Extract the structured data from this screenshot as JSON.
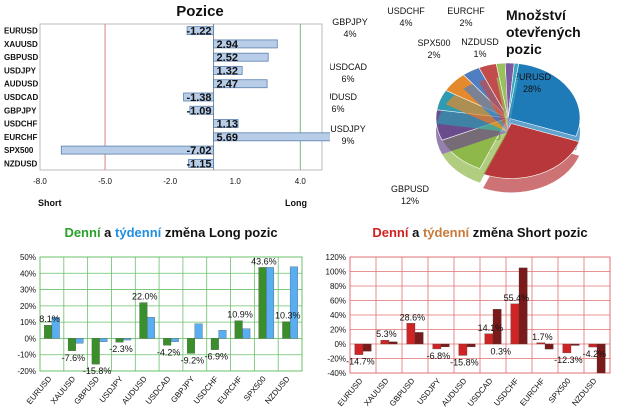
{
  "chart_data": [
    {
      "type": "bar",
      "orientation": "horizontal",
      "title": "Pozice",
      "categories": [
        "EURUSD",
        "XAUUSD",
        "GBPUSD",
        "USDJPY",
        "AUDUSD",
        "USDCAD",
        "GBPJPY",
        "USDCHF",
        "EURCHF",
        "SPX500",
        "NZDUSD"
      ],
      "values": [
        -1.22,
        2.94,
        2.52,
        1.32,
        2.47,
        -1.38,
        -1.09,
        1.13,
        5.69,
        -7.02,
        -1.15
      ],
      "value_labels": [
        "-1.22",
        "2.94",
        "2.52",
        "1.32",
        "2.47",
        "-1.38",
        "-1.09",
        "1.13",
        "5.69",
        "-7.02",
        "-1.15"
      ],
      "xticks": [
        "-8.0",
        "-5.0",
        "-2.0",
        "1.0",
        "4.0"
      ],
      "xlim": [
        -8,
        5
      ],
      "reference_lines": [
        -5,
        4
      ],
      "left_label": "Short",
      "right_label": "Long",
      "colors": {
        "bar": "#b8cde8",
        "bar_edge": "#5a7fb0",
        "neg_line": "#d98080",
        "pos_line": "#7ab87a"
      }
    },
    {
      "type": "pie",
      "title_lines": [
        "Množství",
        "otevřených",
        "pozic"
      ],
      "slices": [
        {
          "label": "EURUSD",
          "value": 28,
          "text": "28%",
          "color": "#1f7ab8"
        },
        {
          "label": "XAUUSD",
          "value": 26,
          "text": "26%",
          "color": "#b8373a"
        },
        {
          "label": "GBPUSD",
          "value": 12,
          "text": "12%",
          "color": "#8fb84a"
        },
        {
          "label": "USDJPY",
          "value": 9,
          "text": "9%",
          "color": "#6a4c8c"
        },
        {
          "label": "AUDUSD",
          "value": 6,
          "text": "6%",
          "color": "#2f9ab0"
        },
        {
          "label": "USDCAD",
          "value": 6,
          "text": "6%",
          "color": "#e48a2c"
        },
        {
          "label": "GBPJPY",
          "value": 4,
          "text": "4%",
          "color": "#4f7fc0"
        },
        {
          "label": "USDCHF",
          "value": 4,
          "text": "4%",
          "color": "#c24b4b"
        },
        {
          "label": "SPX500",
          "value": 2,
          "text": "2%",
          "color": "#9ac25a"
        },
        {
          "label": "EURCHF",
          "value": 2,
          "text": "2%",
          "color": "#7a5aa0"
        },
        {
          "label": "NZDUSD",
          "value": 1,
          "text": "1%",
          "color": "#3aa8c0"
        }
      ]
    },
    {
      "type": "bar",
      "title_parts": [
        {
          "text": "Denní",
          "color": "#2aa02a"
        },
        {
          "text": " a ",
          "color": "#111111"
        },
        {
          "text": "týdenní",
          "color": "#1f8fe0"
        },
        {
          "text": " změna Long pozic",
          "color": "#111111"
        }
      ],
      "categories": [
        "EURUSD",
        "XAUUSD",
        "GBPUSD",
        "USDJPY",
        "AUDUSD",
        "USDCAD",
        "GBPJPY",
        "USDCHF",
        "EURCHF",
        "SPX500",
        "NZDUSD"
      ],
      "series": [
        {
          "values": [
            8.1,
            -7.6,
            -15.8,
            -2.3,
            22.0,
            -4.2,
            -9.2,
            -6.9,
            10.9,
            43.6,
            10.3
          ],
          "color": "#3a8f2a"
        },
        {
          "values": [
            13,
            -3,
            -2,
            -1,
            13,
            -2,
            9,
            5,
            6,
            43.6,
            44
          ],
          "color": "#58aef0"
        }
      ],
      "value_labels": [
        "8.1%",
        "-7.6%",
        "-15.8%",
        "-2.3%",
        "22.0%",
        "-4.2%",
        "-9.2%",
        "-6.9%",
        "10.9%",
        "43.6%",
        "10.3%"
      ],
      "ylim": [
        -20,
        50
      ],
      "yticks": [
        "-20%",
        "-10%",
        "0%",
        "10%",
        "20%",
        "30%",
        "40%",
        "50%"
      ],
      "grid_color": "#6ac06a"
    },
    {
      "type": "bar",
      "title_parts": [
        {
          "text": "Denní",
          "color": "#d02020"
        },
        {
          "text": " a ",
          "color": "#111111"
        },
        {
          "text": "týdenní",
          "color": "#c87a3a"
        },
        {
          "text": " změna Short pozic",
          "color": "#111111"
        }
      ],
      "categories": [
        "EURUSD",
        "XAUUSD",
        "GBPUSD",
        "USDJPY",
        "AUDUSD",
        "USDCAD",
        "USDCHF",
        "EURCHF",
        "SPX500",
        "NZDUSD"
      ],
      "series": [
        {
          "values": [
            -14.7,
            5.3,
            28.6,
            -6.8,
            -15.8,
            14.1,
            55.4,
            1.7,
            -12.3,
            -4.2
          ],
          "color": "#d02424"
        },
        {
          "values": [
            -10,
            3,
            16,
            -4,
            -4,
            48,
            105,
            -7,
            -2,
            -40
          ],
          "color": "#7a1a1a"
        }
      ],
      "value_labels": [
        "-14.7%",
        "5.3%",
        "28.6%",
        "-6.8%",
        "-15.8%",
        "14.1%",
        "55.4%",
        "1.7%",
        "-12.3%",
        "-4.2%"
      ],
      "extra_label": {
        "text": "0.3%",
        "category_index": 5
      },
      "ylim": [
        -40,
        120
      ],
      "yticks": [
        "-40%",
        "-20%",
        "0%",
        "20%",
        "40%",
        "60%",
        "80%",
        "100%",
        "120%"
      ],
      "grid_color": "#e07070"
    }
  ]
}
